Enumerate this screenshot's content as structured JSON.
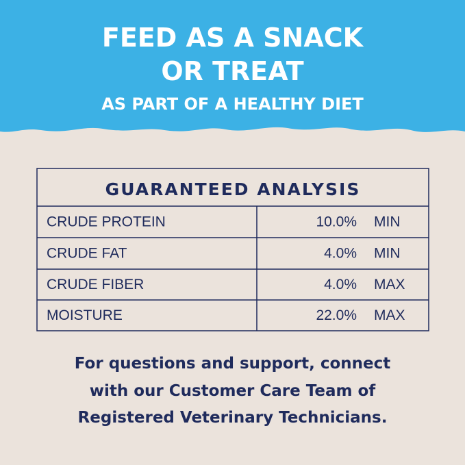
{
  "header": {
    "lines": [
      "FEED AS A SNACK",
      "OR TREAT"
    ],
    "subtitle": "AS PART OF A HEALTHY DIET"
  },
  "table": {
    "title": "GUARANTEED ANALYSIS",
    "rows": [
      [
        "CRUDE PROTEIN",
        "10.0%",
        "MIN"
      ],
      [
        "CRUDE FAT",
        "4.0%",
        "MIN"
      ],
      [
        "CRUDE FIBER",
        "4.0%",
        "MAX"
      ],
      [
        "MOISTURE",
        "22.0%",
        "MAX"
      ]
    ]
  },
  "footer": {
    "lines": [
      "For questions and support, connect",
      "with our Customer Care Team of",
      "Registered Veterinary Technicians."
    ]
  }
}
